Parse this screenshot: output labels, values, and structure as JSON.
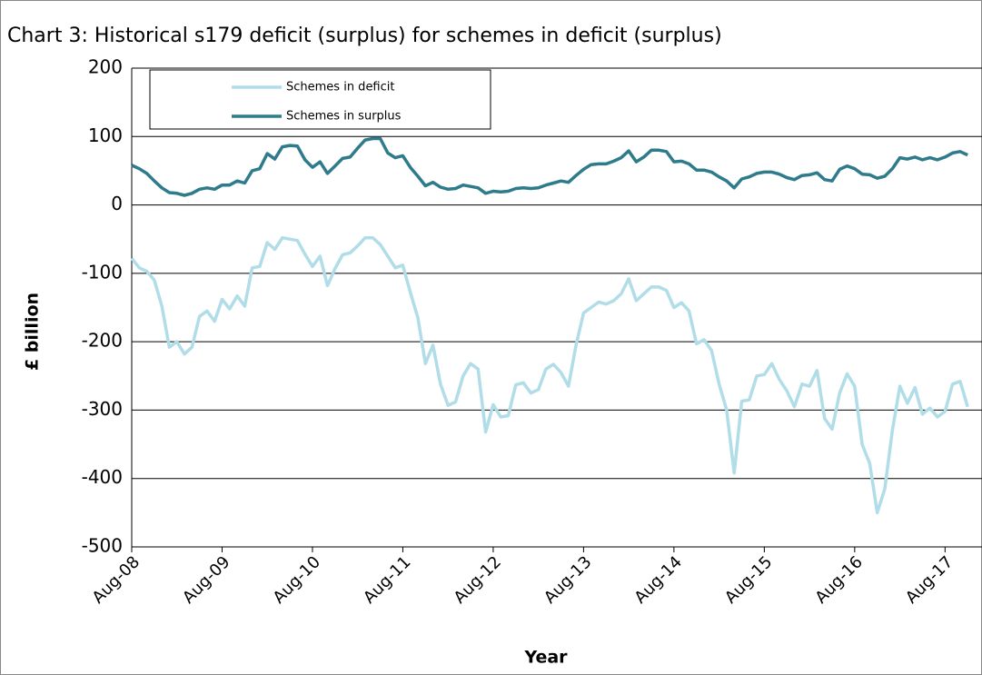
{
  "chart_data": {
    "type": "line",
    "title": "Chart 3: Historical s179 deficit (surplus) for schemes in deficit (surplus)",
    "y_label": "£ billion",
    "x_label": "Year",
    "categories": [
      "Aug-08",
      null,
      null,
      null,
      null,
      null,
      null,
      null,
      null,
      null,
      null,
      null,
      "Aug-09",
      null,
      null,
      null,
      null,
      null,
      null,
      null,
      null,
      null,
      null,
      null,
      "Aug-10",
      null,
      null,
      null,
      null,
      null,
      null,
      null,
      null,
      null,
      null,
      null,
      "Aug-11",
      null,
      null,
      null,
      null,
      null,
      null,
      null,
      null,
      null,
      null,
      null,
      "Aug-12",
      null,
      null,
      null,
      null,
      null,
      null,
      null,
      null,
      null,
      null,
      null,
      "Aug-13",
      null,
      null,
      null,
      null,
      null,
      null,
      null,
      null,
      null,
      null,
      null,
      "Aug-14",
      null,
      null,
      null,
      null,
      null,
      null,
      null,
      null,
      null,
      null,
      null,
      "Aug-15",
      null,
      null,
      null,
      null,
      null,
      null,
      null,
      null,
      null,
      null,
      null,
      "Aug-16",
      null,
      null,
      null,
      null,
      null,
      null,
      null,
      null,
      null,
      null,
      null,
      "Aug-17",
      null,
      null,
      null
    ],
    "series": [
      {
        "name": "Schemes in deficit",
        "color": "#b0dde8",
        "values": [
          -78,
          -92,
          -97,
          -110,
          -148,
          -208,
          -200,
          -218,
          -208,
          -163,
          -155,
          -170,
          -138,
          -152,
          -133,
          -148,
          -92,
          -90,
          -55,
          -65,
          -48,
          -50,
          -52,
          -72,
          -90,
          -75,
          -118,
          -93,
          -73,
          -70,
          -60,
          -48,
          -48,
          -58,
          -75,
          -92,
          -88,
          -128,
          -165,
          -232,
          -205,
          -262,
          -293,
          -288,
          -250,
          -232,
          -240,
          -332,
          -292,
          -310,
          -308,
          -263,
          -260,
          -275,
          -270,
          -240,
          -233,
          -245,
          -265,
          -205,
          -158,
          -150,
          -142,
          -145,
          -140,
          -130,
          -108,
          -140,
          -130,
          -120,
          -120,
          -125,
          -150,
          -143,
          -155,
          -203,
          -197,
          -213,
          -262,
          -300,
          -392,
          -287,
          -285,
          -250,
          -248,
          -232,
          -255,
          -272,
          -295,
          -262,
          -265,
          -242,
          -312,
          -328,
          -275,
          -247,
          -265,
          -350,
          -378,
          -450,
          -415,
          -330,
          -265,
          -290,
          -267,
          -306,
          -297,
          -310,
          -302,
          -262,
          -258,
          -295
        ]
      },
      {
        "name": "Schemes in surplus",
        "color": "#2e7b8c",
        "values": [
          58,
          53,
          46,
          35,
          25,
          18,
          17,
          14,
          17,
          23,
          25,
          23,
          29,
          29,
          35,
          32,
          50,
          53,
          75,
          67,
          85,
          87,
          86,
          66,
          55,
          63,
          46,
          57,
          68,
          70,
          83,
          95,
          97,
          97,
          76,
          69,
          72,
          55,
          42,
          28,
          33,
          26,
          23,
          24,
          29,
          27,
          25,
          17,
          20,
          19,
          20,
          24,
          25,
          24,
          25,
          29,
          32,
          35,
          33,
          43,
          52,
          59,
          60,
          60,
          64,
          69,
          79,
          63,
          70,
          80,
          80,
          78,
          63,
          64,
          60,
          51,
          51,
          48,
          41,
          35,
          25,
          38,
          41,
          46,
          48,
          48,
          45,
          40,
          37,
          43,
          44,
          47,
          37,
          35,
          52,
          57,
          53,
          45,
          44,
          39,
          42,
          53,
          69,
          67,
          70,
          66,
          69,
          66,
          70,
          76,
          78,
          73
        ]
      }
    ],
    "ylim": [
      -500,
      200
    ],
    "yticks": [
      -500,
      -400,
      -300,
      -200,
      -100,
      0,
      100,
      200
    ],
    "grid": true
  }
}
